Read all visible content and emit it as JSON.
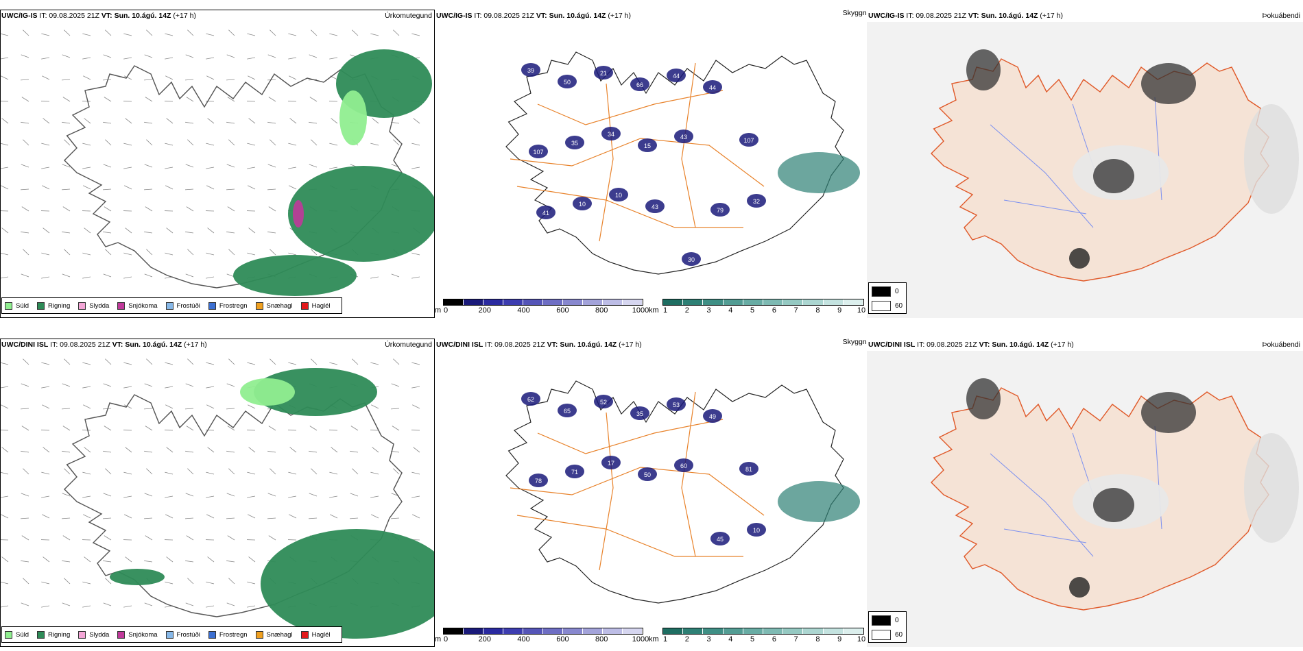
{
  "rows": [
    {
      "model": "UWC/IG-IS",
      "it": "IT: 09.08.2025 21Z",
      "vt_label": "VT:",
      "vt_value": "Sun. 10.ágú. 14Z",
      "lead": "(+17 h)",
      "precip_label": "Úrkomutegund",
      "cloud_label": "Skyggni",
      "fog_label": "Þokuábendi",
      "cloud_markers": [
        "39",
        "50",
        "21",
        "66",
        "44",
        "44",
        "107",
        "107",
        "35",
        "34",
        "15",
        "43",
        "79",
        "32",
        "41",
        "10",
        "10",
        "43",
        "30"
      ]
    },
    {
      "model": "UWC/DINI ISL",
      "it": "IT: 09.08.2025 21Z",
      "vt_label": "VT:",
      "vt_value": "Sun. 10.ágú. 14Z",
      "lead": "(+17 h)",
      "precip_label": "Úrkomutegund",
      "cloud_label": "Skyggni",
      "fog_label": "Þokuábendi",
      "cloud_markers": [
        "62",
        "65",
        "52",
        "35",
        "53",
        "49",
        "81",
        "78",
        "71",
        "17",
        "50",
        "60",
        "45",
        "10"
      ]
    }
  ],
  "precip_legend": [
    {
      "label": "Súld",
      "color": "#90ee90"
    },
    {
      "label": "Rigning",
      "color": "#2e8b57"
    },
    {
      "label": "Slydda",
      "color": "#f4a6d7"
    },
    {
      "label": "Snjókoma",
      "color": "#c0399a"
    },
    {
      "label": "Frostúði",
      "color": "#87b8e8"
    },
    {
      "label": "Frostregn",
      "color": "#3b6fd1"
    },
    {
      "label": "Snæhagl",
      "color": "#f0a020"
    },
    {
      "label": "Haglél",
      "color": "#e31a1c"
    }
  ],
  "height_bar": {
    "unit": "m",
    "ticks": [
      "0",
      "200",
      "400",
      "600",
      "800",
      "1000"
    ],
    "colors": [
      "#000000",
      "#1a1a7a",
      "#2a2aa0",
      "#3d3db0",
      "#5555b8",
      "#6e6ec4",
      "#8888cf",
      "#a3a3da",
      "#bdbde6",
      "#d6d6f0"
    ]
  },
  "vis_bar": {
    "unit": "km",
    "ticks": [
      "1",
      "2",
      "3",
      "4",
      "5",
      "6",
      "7",
      "8",
      "9",
      "10"
    ],
    "colors": [
      "#1f6e62",
      "#2e8075",
      "#3f8f85",
      "#539d94",
      "#68aca4",
      "#7ebab3",
      "#95c9c2",
      "#acd6d1",
      "#c4e3e0",
      "#dcefed"
    ]
  },
  "fog_legend": [
    {
      "value": "0",
      "color": "#000000"
    },
    {
      "value": "60",
      "color": "#ffffff"
    }
  ]
}
